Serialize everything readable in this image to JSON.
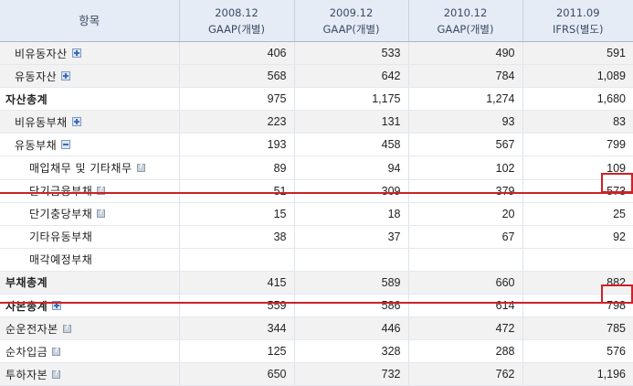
{
  "header": {
    "label": "항목",
    "columns": [
      {
        "period": "2008.12",
        "basis": "GAAP(개별)"
      },
      {
        "period": "2009.12",
        "basis": "GAAP(개별)"
      },
      {
        "period": "2010.12",
        "basis": "GAAP(개별)"
      },
      {
        "period": "2011.09",
        "basis": "IFRS(별도)"
      }
    ]
  },
  "rows": [
    {
      "label": "비유동자산",
      "icon": "plus",
      "values": [
        "406",
        "533",
        "490",
        "591"
      ]
    },
    {
      "label": "유동자산",
      "icon": "plus",
      "values": [
        "568",
        "642",
        "784",
        "1,089"
      ]
    },
    {
      "label": "자산총계",
      "icon": "",
      "values": [
        "975",
        "1,175",
        "1,274",
        "1,680"
      ]
    },
    {
      "label": "비유동부채",
      "icon": "plus",
      "values": [
        "223",
        "131",
        "93",
        "83"
      ]
    },
    {
      "label": "유동부채",
      "icon": "minus",
      "values": [
        "193",
        "458",
        "567",
        "799"
      ]
    },
    {
      "label": "매입채무 및 기타채무",
      "icon": "help",
      "values": [
        "89",
        "94",
        "102",
        "109"
      ]
    },
    {
      "label": "단기금융부채",
      "icon": "help",
      "values": [
        "51",
        "309",
        "379",
        "573"
      ]
    },
    {
      "label": "단기충당부채",
      "icon": "help",
      "values": [
        "15",
        "18",
        "20",
        "25"
      ]
    },
    {
      "label": "기타유동부채",
      "icon": "",
      "values": [
        "38",
        "37",
        "67",
        "92"
      ]
    },
    {
      "label": "매각예정부채",
      "icon": "",
      "values": [
        "",
        "",
        "",
        ""
      ]
    },
    {
      "label": "부채총계",
      "icon": "",
      "values": [
        "415",
        "589",
        "660",
        "882"
      ]
    },
    {
      "label": "자본총계",
      "icon": "plus",
      "values": [
        "559",
        "586",
        "614",
        "798"
      ]
    },
    {
      "label": "순운전자본",
      "icon": "help",
      "values": [
        "344",
        "446",
        "472",
        "785"
      ]
    },
    {
      "label": "순차입금",
      "icon": "help",
      "values": [
        "125",
        "328",
        "288",
        "576"
      ]
    },
    {
      "label": "투하자본",
      "icon": "help",
      "values": [
        "650",
        "732",
        "762",
        "1,196"
      ]
    }
  ],
  "highlight_color": "#cc2229"
}
